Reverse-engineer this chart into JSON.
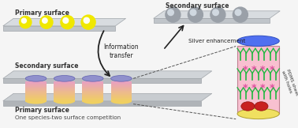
{
  "fig_width": 3.78,
  "fig_height": 1.62,
  "dpi": 100,
  "bg_color": "#f5f5f5",
  "primary_surface_label": "Primary surface",
  "secondary_surface_label": "Secondary surface",
  "bottom_primary_label": "Primary surface",
  "bottom_secondary_label": "Secondary surface",
  "info_transfer_label": "Information\ntransfer",
  "silver_enhancement_label": "Silver enhancement",
  "competition_label": "One species-two surface competition",
  "pdms_label": "PDMS sheet\nwith holes",
  "slab_color": "#d8dce0",
  "slab_edge": "#a0a5aa",
  "slab_front": "#c0c5ca",
  "yellow_spot": "#f0e800",
  "yellow_spot_light": "#fffff0",
  "gray_spot": "#9aa0a8",
  "gray_spot_light": "#d0d8e0",
  "cyl_top": "#9090cc",
  "cyl_pink": "#e8a0c0",
  "cyl_yellow": "#f0d060",
  "pdms_top": "#5070f0",
  "pdms_body": "#f8c0d0",
  "pdms_bottom": "#f0e060",
  "green_mol": "#20b840",
  "pink_star": "#e050a0",
  "red_cell": "#c82020"
}
